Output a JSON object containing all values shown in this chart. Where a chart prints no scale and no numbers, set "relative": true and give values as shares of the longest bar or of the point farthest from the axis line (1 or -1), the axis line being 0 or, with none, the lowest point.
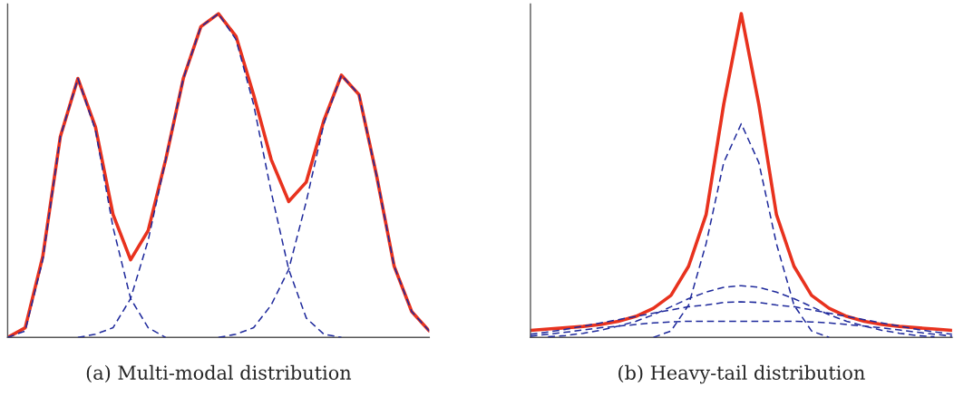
{
  "chart_data": [
    {
      "type": "line",
      "xlabel": "(a) Multi-modal distribution",
      "relative": true,
      "grid": false,
      "legend": false,
      "tick_labels": false,
      "marker": "none",
      "categories": [
        null,
        null,
        null,
        null,
        null,
        null,
        null,
        null,
        null,
        null,
        null,
        null,
        null,
        null,
        null,
        null,
        null,
        null,
        null,
        null,
        null,
        null,
        null,
        null,
        null
      ],
      "series": [
        {
          "color": "#1f2a9c",
          "line_style": "dashed",
          "values": [
            0,
            0.02,
            0.24,
            0.62,
            0.8,
            0.64,
            0.34,
            0.12,
            0.03,
            0,
            null,
            null,
            null,
            null,
            null,
            null,
            null,
            null,
            null,
            null,
            null,
            null,
            null,
            null,
            null
          ]
        },
        {
          "color": "#1f2a9c",
          "line_style": "dashed",
          "values": [
            null,
            null,
            null,
            null,
            0,
            0.01,
            0.03,
            0.12,
            0.3,
            0.55,
            0.8,
            0.96,
            1.0,
            0.92,
            0.72,
            0.45,
            0.21,
            0.06,
            0.01,
            0,
            null,
            null,
            null,
            null,
            null
          ]
        },
        {
          "color": "#1f2a9c",
          "line_style": "dashed",
          "values": [
            null,
            null,
            null,
            null,
            null,
            null,
            null,
            null,
            null,
            null,
            null,
            null,
            0,
            0.01,
            0.03,
            0.1,
            0.21,
            0.42,
            0.66,
            0.81,
            0.75,
            0.5,
            0.22,
            0.08,
            0.02
          ]
        },
        {
          "color": "#e8321e",
          "line_style": "solid",
          "values": [
            0,
            0.03,
            0.25,
            0.62,
            0.8,
            0.65,
            0.38,
            0.24,
            0.33,
            0.55,
            0.8,
            0.96,
            1.0,
            0.93,
            0.75,
            0.55,
            0.42,
            0.48,
            0.67,
            0.81,
            0.75,
            0.5,
            0.22,
            0.08,
            0.02
          ]
        }
      ]
    },
    {
      "type": "line",
      "xlabel": "(b) Heavy-tail distribution",
      "relative": true,
      "grid": false,
      "legend": false,
      "tick_labels": false,
      "marker": "none",
      "categories": [
        null,
        null,
        null,
        null,
        null,
        null,
        null,
        null,
        null,
        null,
        null,
        null,
        null,
        null,
        null,
        null,
        null,
        null,
        null,
        null,
        null,
        null,
        null,
        null,
        null
      ],
      "series": [
        {
          "color": "#1f2a9c",
          "line_style": "dashed",
          "values": [
            null,
            null,
            null,
            null,
            null,
            null,
            null,
            0,
            0.02,
            0.1,
            0.29,
            0.54,
            0.66,
            0.54,
            0.29,
            0.1,
            0.02,
            0,
            null,
            null,
            null,
            null,
            null,
            null,
            null
          ]
        },
        {
          "color": "#1f2a9c",
          "line_style": "dashed",
          "values": [
            null,
            0.002,
            0.006,
            0.013,
            0.022,
            0.035,
            0.05,
            0.07,
            0.095,
            0.12,
            0.14,
            0.155,
            0.16,
            0.155,
            0.14,
            0.12,
            0.095,
            0.07,
            0.05,
            0.035,
            0.022,
            0.013,
            0.006,
            0.002,
            null
          ]
        },
        {
          "color": "#1f2a9c",
          "line_style": "dashed",
          "values": [
            0.01,
            0.017,
            0.025,
            0.035,
            0.045,
            0.055,
            0.065,
            0.075,
            0.085,
            0.095,
            0.1,
            0.108,
            0.11,
            0.108,
            0.1,
            0.095,
            0.085,
            0.075,
            0.065,
            0.055,
            0.045,
            0.035,
            0.025,
            0.017,
            0.01
          ]
        },
        {
          "color": "#1f2a9c",
          "line_style": "dashed",
          "values": [
            0.004,
            0.01,
            0.016,
            0.023,
            0.03,
            0.035,
            0.04,
            0.045,
            0.048,
            0.05,
            0.05,
            0.05,
            0.05,
            0.05,
            0.05,
            0.05,
            0.048,
            0.045,
            0.04,
            0.035,
            0.03,
            0.023,
            0.016,
            0.01,
            0.004
          ]
        },
        {
          "color": "#e8321e",
          "line_style": "solid",
          "values": [
            0.022,
            0.026,
            0.03,
            0.034,
            0.04,
            0.05,
            0.065,
            0.09,
            0.13,
            0.22,
            0.38,
            0.72,
            1.0,
            0.72,
            0.38,
            0.22,
            0.13,
            0.09,
            0.065,
            0.05,
            0.04,
            0.034,
            0.03,
            0.026,
            0.022
          ]
        }
      ]
    }
  ]
}
